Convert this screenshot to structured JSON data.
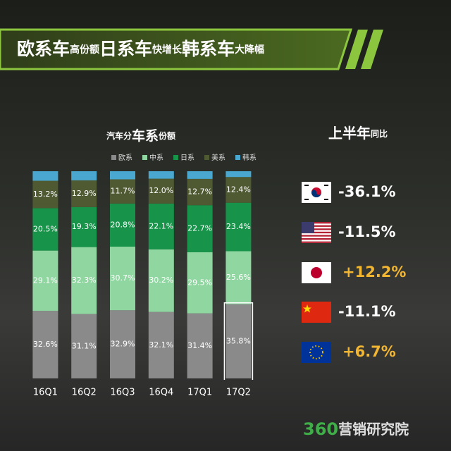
{
  "header": {
    "title_parts": [
      "欧系车",
      "高份额",
      "日系车",
      "快增长",
      "韩系车",
      "大降幅"
    ]
  },
  "chart_data": {
    "type": "stacked_bar",
    "title_parts": [
      "汽车分",
      "车系",
      "份额"
    ],
    "categories": [
      "16Q1",
      "16Q2",
      "16Q3",
      "16Q4",
      "17Q1",
      "17Q2"
    ],
    "ylim": [
      0,
      100
    ],
    "series": [
      {
        "name": "欧系",
        "color": "#8a8a8a",
        "values": [
          32.6,
          31.1,
          32.9,
          32.1,
          31.4,
          35.8
        ],
        "value_labels": [
          "32.6%",
          "31.1%",
          "32.9%",
          "32.1%",
          "31.4%",
          "35.8%"
        ]
      },
      {
        "name": "中系",
        "color": "#8fd6a0",
        "values": [
          29.1,
          32.3,
          30.7,
          30.2,
          29.5,
          25.6
        ],
        "value_labels": [
          "29.1%",
          "32.3%",
          "30.7%",
          "30.2%",
          "29.5%",
          "25.6%"
        ]
      },
      {
        "name": "日系",
        "color": "#17944a",
        "values": [
          20.5,
          19.3,
          20.8,
          22.1,
          22.7,
          23.4
        ],
        "value_labels": [
          "20.5%",
          "19.3%",
          "20.8%",
          "22.1%",
          "22.7%",
          "23.4%"
        ]
      },
      {
        "name": "美系",
        "color": "#4f5a32",
        "values": [
          13.2,
          12.9,
          11.7,
          12.0,
          12.7,
          12.4
        ],
        "value_labels": [
          "13.2%",
          "12.9%",
          "11.7%",
          "12.0%",
          "12.7%",
          "12.4%"
        ]
      },
      {
        "name": "韩系",
        "color": "#4aa8d0",
        "values": [
          4.6,
          4.4,
          3.9,
          3.6,
          3.7,
          2.8
        ]
      }
    ]
  },
  "yoy": {
    "title_parts": [
      "上半年",
      "同比"
    ],
    "values": [
      -36.1,
      -11.5,
      12.2,
      -11.1,
      6.7
    ],
    "value_labels": [
      "-36.1%",
      "-11.5%",
      "+12.2%",
      "-11.1%",
      "+6.7%"
    ],
    "positive_color": "#f2b632",
    "negative_color": "#ffffff"
  },
  "footer": {
    "brand_parts": [
      "360",
      "营销研究院"
    ]
  }
}
